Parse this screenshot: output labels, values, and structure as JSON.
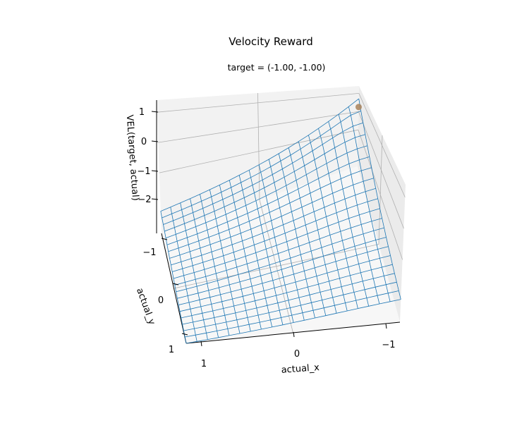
{
  "chart_data": {
    "type": "surface",
    "title": "Velocity Reward",
    "subtitle": "target = (-1.00, -1.00)",
    "xlabel": "actual_x",
    "ylabel": "actual_y",
    "zlabel": "VEL(target, actual)",
    "xlim": [
      -1,
      1
    ],
    "ylim": [
      -1,
      1
    ],
    "zlim": [
      -3,
      1.4
    ],
    "x_ticks": [
      "1",
      "0",
      "−1"
    ],
    "y_ticks": [
      "−1",
      "0",
      "1"
    ],
    "z_ticks": [
      "1",
      "0",
      "−1",
      "−2"
    ],
    "grid": true,
    "mesh_color": "#1f77b4",
    "surface": {
      "grid_n": 21,
      "function": "peak at target, falling off with distance",
      "z_at_target": 0.7,
      "z_at_far_corner": -2.6
    },
    "highlight_point": {
      "x": -1.0,
      "y": -1.0,
      "z": 0.25,
      "color": "#a9825a"
    }
  }
}
